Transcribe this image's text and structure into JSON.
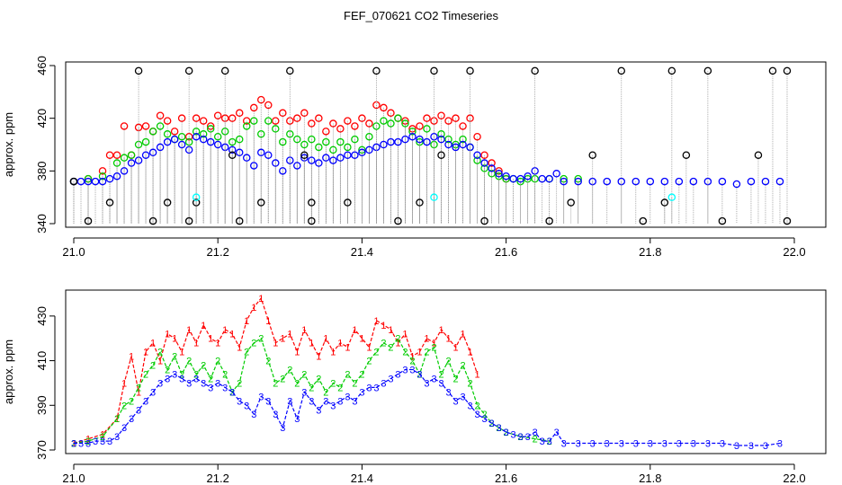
{
  "figure": {
    "title": "FEF_070621  CO2 Timeseries"
  },
  "colors": {
    "series1": "#ff0000",
    "series2": "#00cc00",
    "series3": "#0000ff",
    "background_flag": "#000000",
    "calibration_flag": "#00ffff",
    "drop_lines": "#999999"
  },
  "chart_data": [
    {
      "type": "scatter",
      "title": "",
      "xlabel": "",
      "ylabel": "approx. ppm",
      "xlim": [
        21.0,
        22.0
      ],
      "ylim": [
        340,
        460
      ],
      "xticks": [
        21.0,
        21.2,
        21.4,
        21.6,
        21.8,
        22.0
      ],
      "xtick_labels": [
        "21.0",
        "21.2",
        "21.4",
        "21.6",
        "21.8",
        "22.0"
      ],
      "yticks": [
        340,
        380,
        420,
        460
      ],
      "ytick_labels": [
        "340",
        "380",
        "420",
        "460"
      ],
      "grid": false,
      "legend": "none",
      "drop_lines_to": 340,
      "series": [
        {
          "color": "#ff0000",
          "marker": "circle",
          "x": [
            21.0,
            21.02,
            21.04,
            21.05,
            21.06,
            21.07,
            21.08,
            21.09,
            21.1,
            21.11,
            21.12,
            21.13,
            21.14,
            21.15,
            21.16,
            21.17,
            21.18,
            21.19,
            21.2,
            21.21,
            21.22,
            21.23,
            21.24,
            21.25,
            21.26,
            21.27,
            21.28,
            21.29,
            21.3,
            21.31,
            21.32,
            21.33,
            21.34,
            21.35,
            21.36,
            21.37,
            21.38,
            21.39,
            21.4,
            21.41,
            21.42,
            21.43,
            21.44,
            21.45,
            21.46,
            21.47,
            21.48,
            21.49,
            21.5,
            21.51,
            21.52,
            21.53,
            21.54,
            21.55,
            21.56,
            21.57,
            21.58,
            21.59,
            21.6
          ],
          "y": [
            372,
            374,
            380,
            392,
            392,
            414,
            392,
            413,
            414,
            410,
            422,
            418,
            410,
            420,
            406,
            420,
            418,
            414,
            422,
            420,
            420,
            424,
            418,
            428,
            434,
            430,
            418,
            424,
            418,
            420,
            424,
            416,
            420,
            410,
            416,
            412,
            418,
            414,
            420,
            416,
            430,
            428,
            424,
            420,
            418,
            412,
            414,
            420,
            418,
            422,
            418,
            420,
            414,
            420,
            406,
            392,
            386,
            380,
            374
          ]
        },
        {
          "color": "#00cc00",
          "marker": "circle",
          "x": [
            21.0,
            21.02,
            21.04,
            21.06,
            21.07,
            21.08,
            21.09,
            21.1,
            21.11,
            21.12,
            21.13,
            21.14,
            21.15,
            21.16,
            21.17,
            21.18,
            21.19,
            21.2,
            21.21,
            21.22,
            21.23,
            21.24,
            21.25,
            21.26,
            21.27,
            21.28,
            21.29,
            21.3,
            21.31,
            21.32,
            21.33,
            21.34,
            21.35,
            21.36,
            21.37,
            21.38,
            21.39,
            21.4,
            21.41,
            21.42,
            21.43,
            21.44,
            21.45,
            21.46,
            21.47,
            21.48,
            21.49,
            21.5,
            21.51,
            21.52,
            21.53,
            21.54,
            21.55,
            21.56,
            21.57,
            21.58,
            21.59,
            21.6,
            21.61,
            21.62,
            21.63,
            21.64,
            21.66,
            21.68,
            21.7
          ],
          "y": [
            372,
            374,
            376,
            386,
            390,
            392,
            400,
            402,
            410,
            414,
            408,
            404,
            406,
            402,
            410,
            408,
            412,
            406,
            410,
            402,
            404,
            414,
            418,
            408,
            418,
            412,
            402,
            408,
            404,
            400,
            404,
            398,
            402,
            396,
            402,
            398,
            404,
            396,
            406,
            414,
            418,
            416,
            420,
            416,
            410,
            402,
            412,
            400,
            408,
            404,
            400,
            404,
            398,
            388,
            382,
            378,
            376,
            374,
            374,
            372,
            374,
            374,
            374,
            374,
            374
          ]
        },
        {
          "color": "#0000ff",
          "marker": "circle",
          "x": [
            21.0,
            21.01,
            21.02,
            21.03,
            21.04,
            21.05,
            21.06,
            21.07,
            21.08,
            21.09,
            21.1,
            21.11,
            21.12,
            21.13,
            21.14,
            21.15,
            21.16,
            21.17,
            21.18,
            21.19,
            21.2,
            21.21,
            21.22,
            21.23,
            21.24,
            21.25,
            21.26,
            21.27,
            21.28,
            21.29,
            21.3,
            21.31,
            21.32,
            21.33,
            21.34,
            21.35,
            21.36,
            21.37,
            21.38,
            21.39,
            21.4,
            21.41,
            21.42,
            21.43,
            21.44,
            21.45,
            21.46,
            21.47,
            21.48,
            21.49,
            21.5,
            21.51,
            21.52,
            21.53,
            21.54,
            21.55,
            21.56,
            21.57,
            21.58,
            21.59,
            21.6,
            21.61,
            21.62,
            21.63,
            21.64,
            21.65,
            21.66,
            21.67,
            21.68,
            21.7,
            21.72,
            21.74,
            21.76,
            21.78,
            21.8,
            21.82,
            21.84,
            21.86,
            21.88,
            21.9,
            21.92,
            21.94,
            21.96,
            21.98
          ],
          "y": [
            372,
            372,
            372,
            372,
            372,
            374,
            376,
            380,
            386,
            388,
            392,
            394,
            398,
            402,
            404,
            400,
            396,
            406,
            404,
            402,
            400,
            398,
            396,
            394,
            390,
            384,
            394,
            392,
            386,
            380,
            388,
            384,
            390,
            388,
            386,
            390,
            388,
            390,
            392,
            392,
            394,
            396,
            398,
            400,
            402,
            402,
            404,
            406,
            404,
            402,
            406,
            404,
            400,
            398,
            400,
            398,
            392,
            386,
            382,
            378,
            376,
            374,
            374,
            376,
            380,
            374,
            374,
            378,
            372,
            372,
            372,
            372,
            372,
            372,
            372,
            372,
            372,
            372,
            372,
            372,
            370,
            372,
            372,
            372
          ]
        },
        {
          "color": "#000000",
          "marker": "circle",
          "x": [
            21.0,
            21.02,
            21.05,
            21.09,
            21.11,
            21.13,
            21.16,
            21.16,
            21.17,
            21.21,
            21.22,
            21.23,
            21.26,
            21.3,
            21.32,
            21.33,
            21.33,
            21.38,
            21.42,
            21.45,
            21.48,
            21.5,
            21.51,
            21.55,
            21.57,
            21.64,
            21.66,
            21.69,
            21.72,
            21.76,
            21.79,
            21.82,
            21.83,
            21.85,
            21.88,
            21.9,
            21.95,
            21.97,
            21.99,
            21.99
          ],
          "y": [
            372,
            342,
            356,
            456,
            342,
            356,
            342,
            456,
            356,
            456,
            392,
            342,
            356,
            456,
            392,
            356,
            342,
            356,
            456,
            342,
            356,
            456,
            392,
            456,
            342,
            456,
            342,
            356,
            392,
            456,
            342,
            356,
            456,
            392,
            456,
            342,
            392,
            456,
            456,
            342
          ]
        },
        {
          "color": "#00ffff",
          "marker": "circle",
          "x": [
            21.17,
            21.5,
            21.83
          ],
          "y": [
            360,
            360,
            360
          ]
        }
      ]
    },
    {
      "type": "line",
      "title": "",
      "xlabel": "",
      "ylabel": "approx. ppm",
      "xlim": [
        21.0,
        22.0
      ],
      "ylim": [
        370,
        440
      ],
      "xticks": [
        21.0,
        21.2,
        21.4,
        21.6,
        21.8,
        22.0
      ],
      "xtick_labels": [
        "21.0",
        "21.2",
        "21.4",
        "21.6",
        "21.8",
        "22.0"
      ],
      "yticks": [
        370,
        390,
        410,
        430
      ],
      "ytick_labels": [
        "370",
        "390",
        "410",
        "430"
      ],
      "grid": false,
      "legend": "none",
      "series": [
        {
          "color": "#ff0000",
          "marker": "1",
          "x": [
            21.0,
            21.02,
            21.04,
            21.06,
            21.07,
            21.08,
            21.09,
            21.1,
            21.11,
            21.12,
            21.13,
            21.14,
            21.15,
            21.16,
            21.17,
            21.18,
            21.19,
            21.2,
            21.21,
            21.22,
            21.23,
            21.24,
            21.25,
            21.26,
            21.27,
            21.28,
            21.29,
            21.3,
            21.31,
            21.32,
            21.33,
            21.34,
            21.35,
            21.36,
            21.37,
            21.38,
            21.39,
            21.4,
            21.41,
            21.42,
            21.43,
            21.44,
            21.45,
            21.46,
            21.47,
            21.48,
            21.49,
            21.5,
            21.51,
            21.52,
            21.53,
            21.54,
            21.55,
            21.56
          ],
          "y": [
            373,
            375,
            377,
            384,
            400,
            412,
            396,
            414,
            418,
            410,
            422,
            420,
            414,
            424,
            418,
            426,
            420,
            418,
            424,
            422,
            416,
            428,
            434,
            438,
            428,
            418,
            420,
            422,
            414,
            424,
            418,
            412,
            420,
            414,
            418,
            416,
            424,
            420,
            416,
            428,
            426,
            424,
            418,
            422,
            412,
            414,
            420,
            418,
            424,
            420,
            416,
            422,
            414,
            404
          ]
        },
        {
          "color": "#00cc00",
          "marker": "2",
          "x": [
            21.0,
            21.02,
            21.04,
            21.06,
            21.07,
            21.08,
            21.09,
            21.1,
            21.11,
            21.12,
            21.13,
            21.14,
            21.15,
            21.16,
            21.17,
            21.18,
            21.19,
            21.2,
            21.21,
            21.22,
            21.23,
            21.24,
            21.25,
            21.26,
            21.27,
            21.28,
            21.29,
            21.3,
            21.31,
            21.32,
            21.33,
            21.34,
            21.35,
            21.36,
            21.37,
            21.38,
            21.39,
            21.4,
            21.41,
            21.42,
            21.43,
            21.44,
            21.45,
            21.46,
            21.47,
            21.48,
            21.49,
            21.5,
            21.51,
            21.52,
            21.53,
            21.54,
            21.55,
            21.56,
            21.57,
            21.58,
            21.59,
            21.6,
            21.62,
            21.64,
            21.66
          ],
          "y": [
            373,
            374,
            376,
            384,
            390,
            392,
            398,
            404,
            408,
            414,
            406,
            412,
            404,
            410,
            404,
            408,
            402,
            410,
            404,
            396,
            400,
            414,
            418,
            420,
            410,
            400,
            402,
            406,
            400,
            404,
            398,
            402,
            396,
            400,
            398,
            404,
            400,
            404,
            410,
            414,
            418,
            416,
            420,
            414,
            410,
            404,
            414,
            416,
            404,
            410,
            402,
            408,
            400,
            390,
            386,
            382,
            380,
            378,
            376,
            375,
            374
          ]
        },
        {
          "color": "#0000ff",
          "marker": "3",
          "x": [
            21.0,
            21.01,
            21.02,
            21.03,
            21.04,
            21.05,
            21.06,
            21.07,
            21.08,
            21.09,
            21.1,
            21.11,
            21.12,
            21.13,
            21.14,
            21.15,
            21.16,
            21.17,
            21.18,
            21.19,
            21.2,
            21.21,
            21.22,
            21.23,
            21.24,
            21.25,
            21.26,
            21.27,
            21.28,
            21.29,
            21.3,
            21.31,
            21.32,
            21.33,
            21.34,
            21.35,
            21.36,
            21.37,
            21.38,
            21.39,
            21.4,
            21.41,
            21.42,
            21.43,
            21.44,
            21.45,
            21.46,
            21.47,
            21.48,
            21.49,
            21.5,
            21.51,
            21.52,
            21.53,
            21.54,
            21.55,
            21.56,
            21.57,
            21.58,
            21.59,
            21.6,
            21.61,
            21.62,
            21.63,
            21.64,
            21.65,
            21.66,
            21.67,
            21.68,
            21.7,
            21.72,
            21.74,
            21.76,
            21.78,
            21.8,
            21.82,
            21.84,
            21.86,
            21.88,
            21.9,
            21.92,
            21.94,
            21.96,
            21.98
          ],
          "y": [
            373,
            373,
            373,
            374,
            374,
            374,
            376,
            380,
            384,
            388,
            392,
            396,
            400,
            402,
            404,
            402,
            400,
            402,
            400,
            398,
            400,
            398,
            396,
            392,
            390,
            386,
            394,
            392,
            386,
            380,
            392,
            384,
            396,
            392,
            388,
            392,
            390,
            392,
            394,
            392,
            396,
            398,
            398,
            400,
            402,
            404,
            406,
            406,
            404,
            400,
            402,
            400,
            396,
            392,
            394,
            390,
            386,
            384,
            382,
            380,
            378,
            377,
            376,
            376,
            378,
            374,
            374,
            378,
            373,
            373,
            373,
            373,
            373,
            373,
            373,
            373,
            373,
            373,
            373,
            373,
            372,
            372,
            372,
            373
          ]
        }
      ]
    }
  ]
}
